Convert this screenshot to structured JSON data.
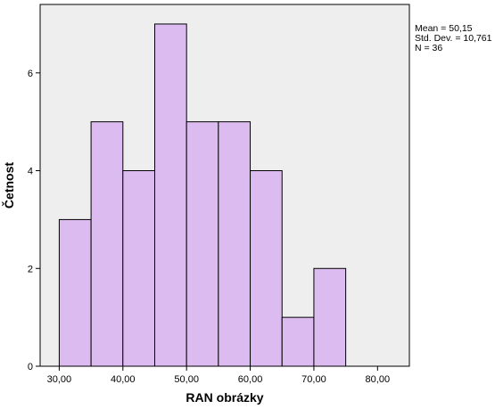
{
  "chart_data": {
    "type": "bar",
    "subtype": "histogram",
    "xlabel": "RAN obrázky",
    "ylabel": "Četnost",
    "x_ticks": [
      "30,00",
      "40,00",
      "50,00",
      "60,00",
      "70,00",
      "80,00"
    ],
    "x_tick_values": [
      30,
      40,
      50,
      60,
      70,
      80
    ],
    "y_ticks": [
      "0",
      "2",
      "4",
      "6"
    ],
    "y_tick_values": [
      0,
      2,
      4,
      6
    ],
    "xlim": [
      27,
      85
    ],
    "ylim": [
      0,
      7.4
    ],
    "bins": [
      {
        "from": 30,
        "to": 35,
        "count": 3
      },
      {
        "from": 35,
        "to": 40,
        "count": 5
      },
      {
        "from": 40,
        "to": 45,
        "count": 4
      },
      {
        "from": 45,
        "to": 50,
        "count": 7
      },
      {
        "from": 50,
        "to": 55,
        "count": 5
      },
      {
        "from": 55,
        "to": 60,
        "count": 5
      },
      {
        "from": 60,
        "to": 65,
        "count": 4
      },
      {
        "from": 65,
        "to": 70,
        "count": 1
      },
      {
        "from": 70,
        "to": 75,
        "count": 2
      }
    ],
    "stats": {
      "mean": "Mean = 50,15",
      "std_dev": "Std. Dev. = 10,761",
      "n": "N = 36"
    },
    "colors": {
      "bar_fill": "#dcbcf0",
      "bar_stroke": "#000000",
      "plot_background": "#efeeee"
    },
    "grid": false
  }
}
